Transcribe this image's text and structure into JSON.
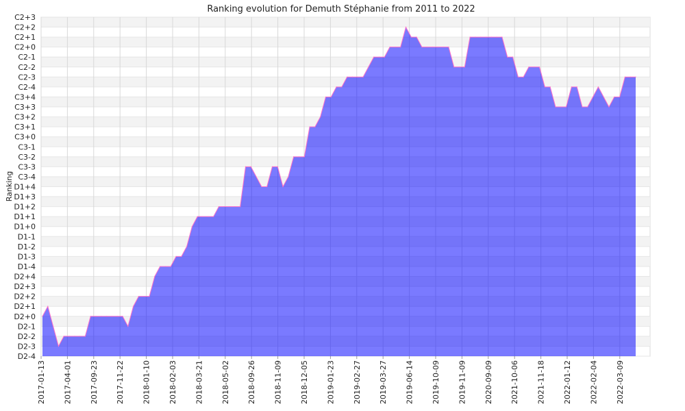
{
  "chart_data": {
    "type": "area",
    "title": "Ranking evolution for Demuth Stéphanie from 2011 to 2022",
    "ylabel": "Ranking",
    "xlabel": "",
    "grid": true,
    "y_categories": [
      "D2-4",
      "D2-3",
      "D2-2",
      "D2-1",
      "D2+0",
      "D2+1",
      "D2+2",
      "D2+3",
      "D2+4",
      "D1-4",
      "D1-3",
      "D1-2",
      "D1-1",
      "D1+0",
      "D1+1",
      "D1+2",
      "D1+3",
      "D1+4",
      "C3-4",
      "C3-3",
      "C3-2",
      "C3-1",
      "C3+0",
      "C3+1",
      "C3+2",
      "C3+3",
      "C3+4",
      "C2-4",
      "C2-3",
      "C2-2",
      "C2-1",
      "C2+0",
      "C2+1",
      "C2+2",
      "C2+3"
    ],
    "x_tick_labels": [
      "2017-01-13",
      "2017-04-01",
      "2017-09-23",
      "2017-11-22",
      "2018-01-10",
      "2018-02-03",
      "2018-03-21",
      "2018-05-02",
      "2018-09-26",
      "2018-11-09",
      "2018-12-05",
      "2019-01-23",
      "2019-02-27",
      "2019-03-27",
      "2019-06-14",
      "2019-10-09",
      "2019-11-09",
      "2020-09-09",
      "2021-10-06",
      "2021-11-18",
      "2022-01-12",
      "2022-02-04",
      "2022-03-09"
    ],
    "series": [
      {
        "values": [
          "D2+0",
          "D2+1",
          "D2-1",
          "D2-3",
          "D2-2",
          "D2-2",
          "D2-2",
          "D2-2",
          "D2-2",
          "D2+0",
          "D2+0",
          "D2+0",
          "D2+0",
          "D2+0",
          "D2+0",
          "D2+0",
          "D2-1",
          "D2+1",
          "D2+2",
          "D2+2",
          "D2+2",
          "D2+4",
          "D1-4",
          "D1-4",
          "D1-4",
          "D1-3",
          "D1-3",
          "D1-2",
          "D1+0",
          "D1+1",
          "D1+1",
          "D1+1",
          "D1+1",
          "D1+2",
          "D1+2",
          "D1+2",
          "D1+2",
          "D1+2",
          "C3-3",
          "C3-3",
          "C3-4",
          "D1+4",
          "D1+4",
          "C3-3",
          "C3-3",
          "D1+4",
          "C3-4",
          "C3-2",
          "C3-2",
          "C3-2",
          "C3+1",
          "C3+1",
          "C3+2",
          "C3+4",
          "C3+4",
          "C2-4",
          "C2-4",
          "C2-3",
          "C2-3",
          "C2-3",
          "C2-3",
          "C2-2",
          "C2-1",
          "C2-1",
          "C2-1",
          "C2+0",
          "C2+0",
          "C2+0",
          "C2+2",
          "C2+1",
          "C2+1",
          "C2+0",
          "C2+0",
          "C2+0",
          "C2+0",
          "C2+0",
          "C2+0",
          "C2-2",
          "C2-2",
          "C2-2",
          "C2+1",
          "C2+1",
          "C2+1",
          "C2+1",
          "C2+1",
          "C2+1",
          "C2+1",
          "C2-1",
          "C2-1",
          "C2-3",
          "C2-3",
          "C2-2",
          "C2-2",
          "C2-2",
          "C2-4",
          "C2-4",
          "C3+3",
          "C3+3",
          "C3+3",
          "C2-4",
          "C2-4",
          "C3+3",
          "C3+3",
          "C3+4",
          "C2-4",
          "C3+4",
          "C3+3",
          "C3+4",
          "C3+4",
          "C2-3",
          "C2-3",
          "C2-3"
        ]
      }
    ],
    "colors": {
      "fill": "#7b7bff",
      "line": "#ff70c8",
      "grid": "#d8d8d8",
      "band": "#f3f3f3"
    }
  }
}
